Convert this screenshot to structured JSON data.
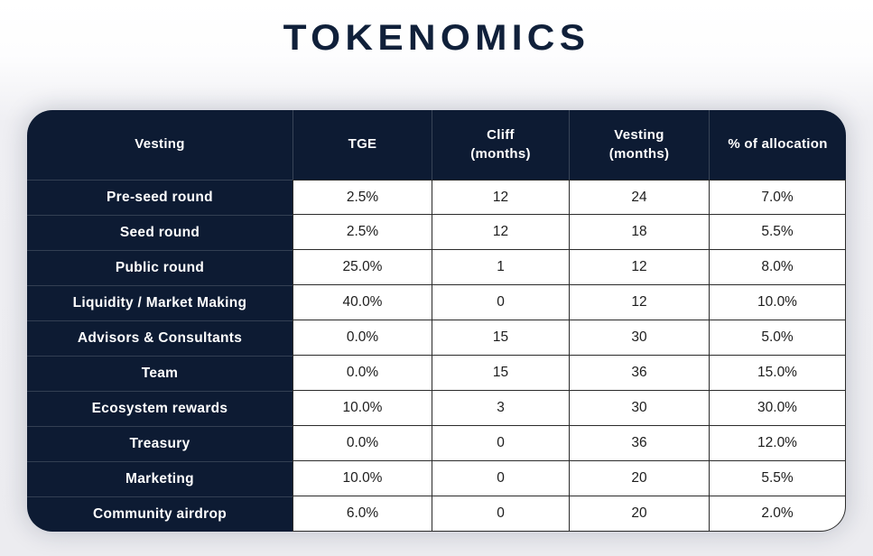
{
  "chart_data": {
    "type": "table",
    "title": "TOKENOMICS",
    "columns": [
      {
        "label": "Vesting",
        "sub": ""
      },
      {
        "label": "TGE",
        "sub": ""
      },
      {
        "label": "Cliff",
        "sub": "(months)"
      },
      {
        "label": "Vesting",
        "sub": "(months)"
      },
      {
        "label": "% of allocation",
        "sub": ""
      }
    ],
    "rows": [
      {
        "name": "Pre-seed round",
        "tge": "2.5%",
        "cliff": "12",
        "vesting": "24",
        "allocation": "7.0%"
      },
      {
        "name": "Seed round",
        "tge": "2.5%",
        "cliff": "12",
        "vesting": "18",
        "allocation": "5.5%"
      },
      {
        "name": "Public round",
        "tge": "25.0%",
        "cliff": "1",
        "vesting": "12",
        "allocation": "8.0%"
      },
      {
        "name": "Liquidity / Market Making",
        "tge": "40.0%",
        "cliff": "0",
        "vesting": "12",
        "allocation": "10.0%"
      },
      {
        "name": "Advisors & Consultants",
        "tge": "0.0%",
        "cliff": "15",
        "vesting": "30",
        "allocation": "5.0%"
      },
      {
        "name": "Team",
        "tge": "0.0%",
        "cliff": "15",
        "vesting": "36",
        "allocation": "15.0%"
      },
      {
        "name": "Ecosystem rewards",
        "tge": "10.0%",
        "cliff": "3",
        "vesting": "30",
        "allocation": "30.0%"
      },
      {
        "name": "Treasury",
        "tge": "0.0%",
        "cliff": "0",
        "vesting": "36",
        "allocation": "12.0%"
      },
      {
        "name": "Marketing",
        "tge": "10.0%",
        "cliff": "0",
        "vesting": "20",
        "allocation": "5.5%"
      },
      {
        "name": "Community airdrop",
        "tge": "6.0%",
        "cliff": "0",
        "vesting": "20",
        "allocation": "2.0%"
      }
    ],
    "colors": {
      "navy": "#0d1b33",
      "title": "#10203a",
      "cell_border": "#2b2b2b",
      "cell_text": "#1d1d1d",
      "background_bottom": "#ececf0"
    },
    "layout": {
      "grid": "on",
      "header_position": "top",
      "label_column_position": "left"
    }
  }
}
